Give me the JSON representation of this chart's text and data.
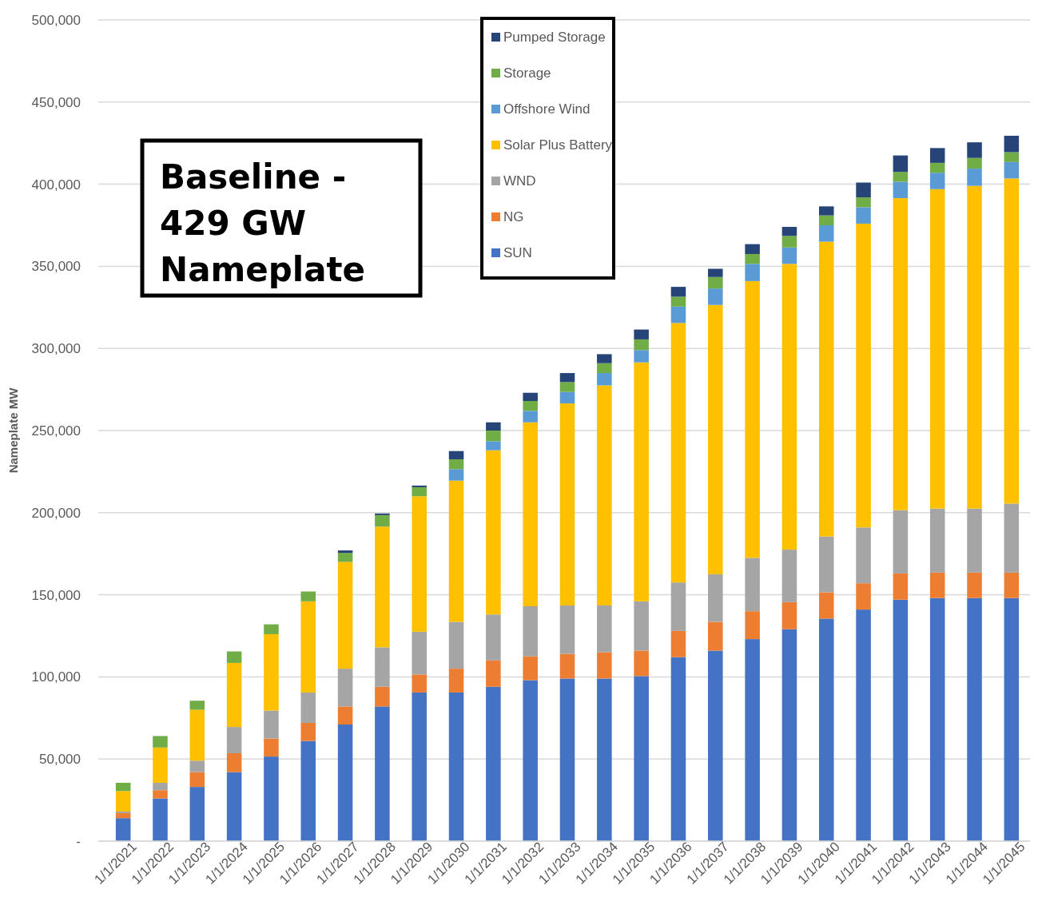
{
  "chart_data": {
    "type": "bar",
    "stacked": true,
    "ylabel": "Nameplate MW",
    "grid": "y",
    "legend": "top",
    "annotations": [
      "Baseline - 429 GW Nameplate"
    ],
    "categories": [
      "1/1/2021",
      "1/1/2022",
      "1/1/2023",
      "1/1/2024",
      "1/1/2025",
      "1/1/2026",
      "1/1/2027",
      "1/1/2028",
      "1/1/2029",
      "1/1/2030",
      "1/1/2031",
      "1/1/2032",
      "1/1/2033",
      "1/1/2034",
      "1/1/2035",
      "1/1/2036",
      "1/1/2037",
      "1/1/2038",
      "1/1/2039",
      "1/1/2040",
      "1/1/2041",
      "1/1/2042",
      "1/1/2043",
      "1/1/2044",
      "1/1/2045"
    ],
    "ylim": [
      0,
      500000
    ],
    "yticks": [
      {
        "value": 0,
        "label": "-"
      },
      {
        "value": 50000,
        "label": "50,000"
      },
      {
        "value": 100000,
        "label": "100,000"
      },
      {
        "value": 150000,
        "label": "150,000"
      },
      {
        "value": 200000,
        "label": "200,000"
      },
      {
        "value": 250000,
        "label": "250,000"
      },
      {
        "value": 300000,
        "label": "300,000"
      },
      {
        "value": 350000,
        "label": "350,000"
      },
      {
        "value": 400000,
        "label": "400,000"
      },
      {
        "value": 450000,
        "label": "450,000"
      },
      {
        "value": 500000,
        "label": "500,000"
      }
    ],
    "series": [
      {
        "name": "SUN",
        "color": "#4472c4",
        "values": [
          14000,
          26000,
          33000,
          42000,
          51500,
          61000,
          71000,
          82000,
          90500,
          90500,
          94000,
          98000,
          99000,
          99000,
          100500,
          112000,
          116000,
          123000,
          129000,
          135500,
          141000,
          147000,
          148000,
          148000,
          148000
        ]
      },
      {
        "name": "NG",
        "color": "#ed7d31",
        "values": [
          3000,
          5000,
          9000,
          11500,
          11000,
          11000,
          11000,
          12000,
          11000,
          14500,
          16000,
          14500,
          15000,
          16000,
          15500,
          16000,
          17500,
          17000,
          16500,
          16000,
          16000,
          16000,
          15500,
          15500,
          15500
        ]
      },
      {
        "name": "WND",
        "color": "#a5a5a5",
        "values": [
          1000,
          4500,
          7000,
          16000,
          17000,
          18500,
          23000,
          24000,
          26000,
          28500,
          28000,
          30500,
          29500,
          28500,
          30000,
          29500,
          29000,
          32500,
          32000,
          34000,
          34000,
          38500,
          39000,
          39000,
          42000
        ]
      },
      {
        "name": "Solar Plus Battery",
        "color": "#ffc000",
        "values": [
          12500,
          21500,
          31000,
          39000,
          46500,
          55500,
          65000,
          73500,
          82500,
          86000,
          100000,
          112000,
          123000,
          134000,
          145500,
          158000,
          164000,
          168500,
          174000,
          179500,
          185000,
          190000,
          194500,
          196500,
          198000
        ]
      },
      {
        "name": "Offshore Wind",
        "color": "#5b9bd5",
        "values": [
          0,
          0,
          0,
          0,
          0,
          0,
          0,
          0,
          0,
          7000,
          5500,
          7000,
          7000,
          7500,
          7500,
          10000,
          10000,
          10500,
          10000,
          10000,
          10000,
          10000,
          10000,
          10500,
          10000
        ]
      },
      {
        "name": "Storage",
        "color": "#70ad47",
        "values": [
          5000,
          7000,
          5500,
          7000,
          6000,
          6000,
          5500,
          7000,
          5500,
          6000,
          6500,
          6000,
          6000,
          6000,
          6500,
          6000,
          7000,
          6000,
          7000,
          6000,
          6000,
          6000,
          6000,
          6500,
          6000
        ]
      },
      {
        "name": "Pumped Storage",
        "color": "#264478",
        "values": [
          0,
          0,
          0,
          0,
          0,
          0,
          1500,
          1000,
          1000,
          5000,
          5000,
          5000,
          5500,
          5500,
          6000,
          6000,
          5000,
          6000,
          5500,
          5500,
          9000,
          10000,
          9000,
          9500,
          10000
        ]
      }
    ]
  }
}
